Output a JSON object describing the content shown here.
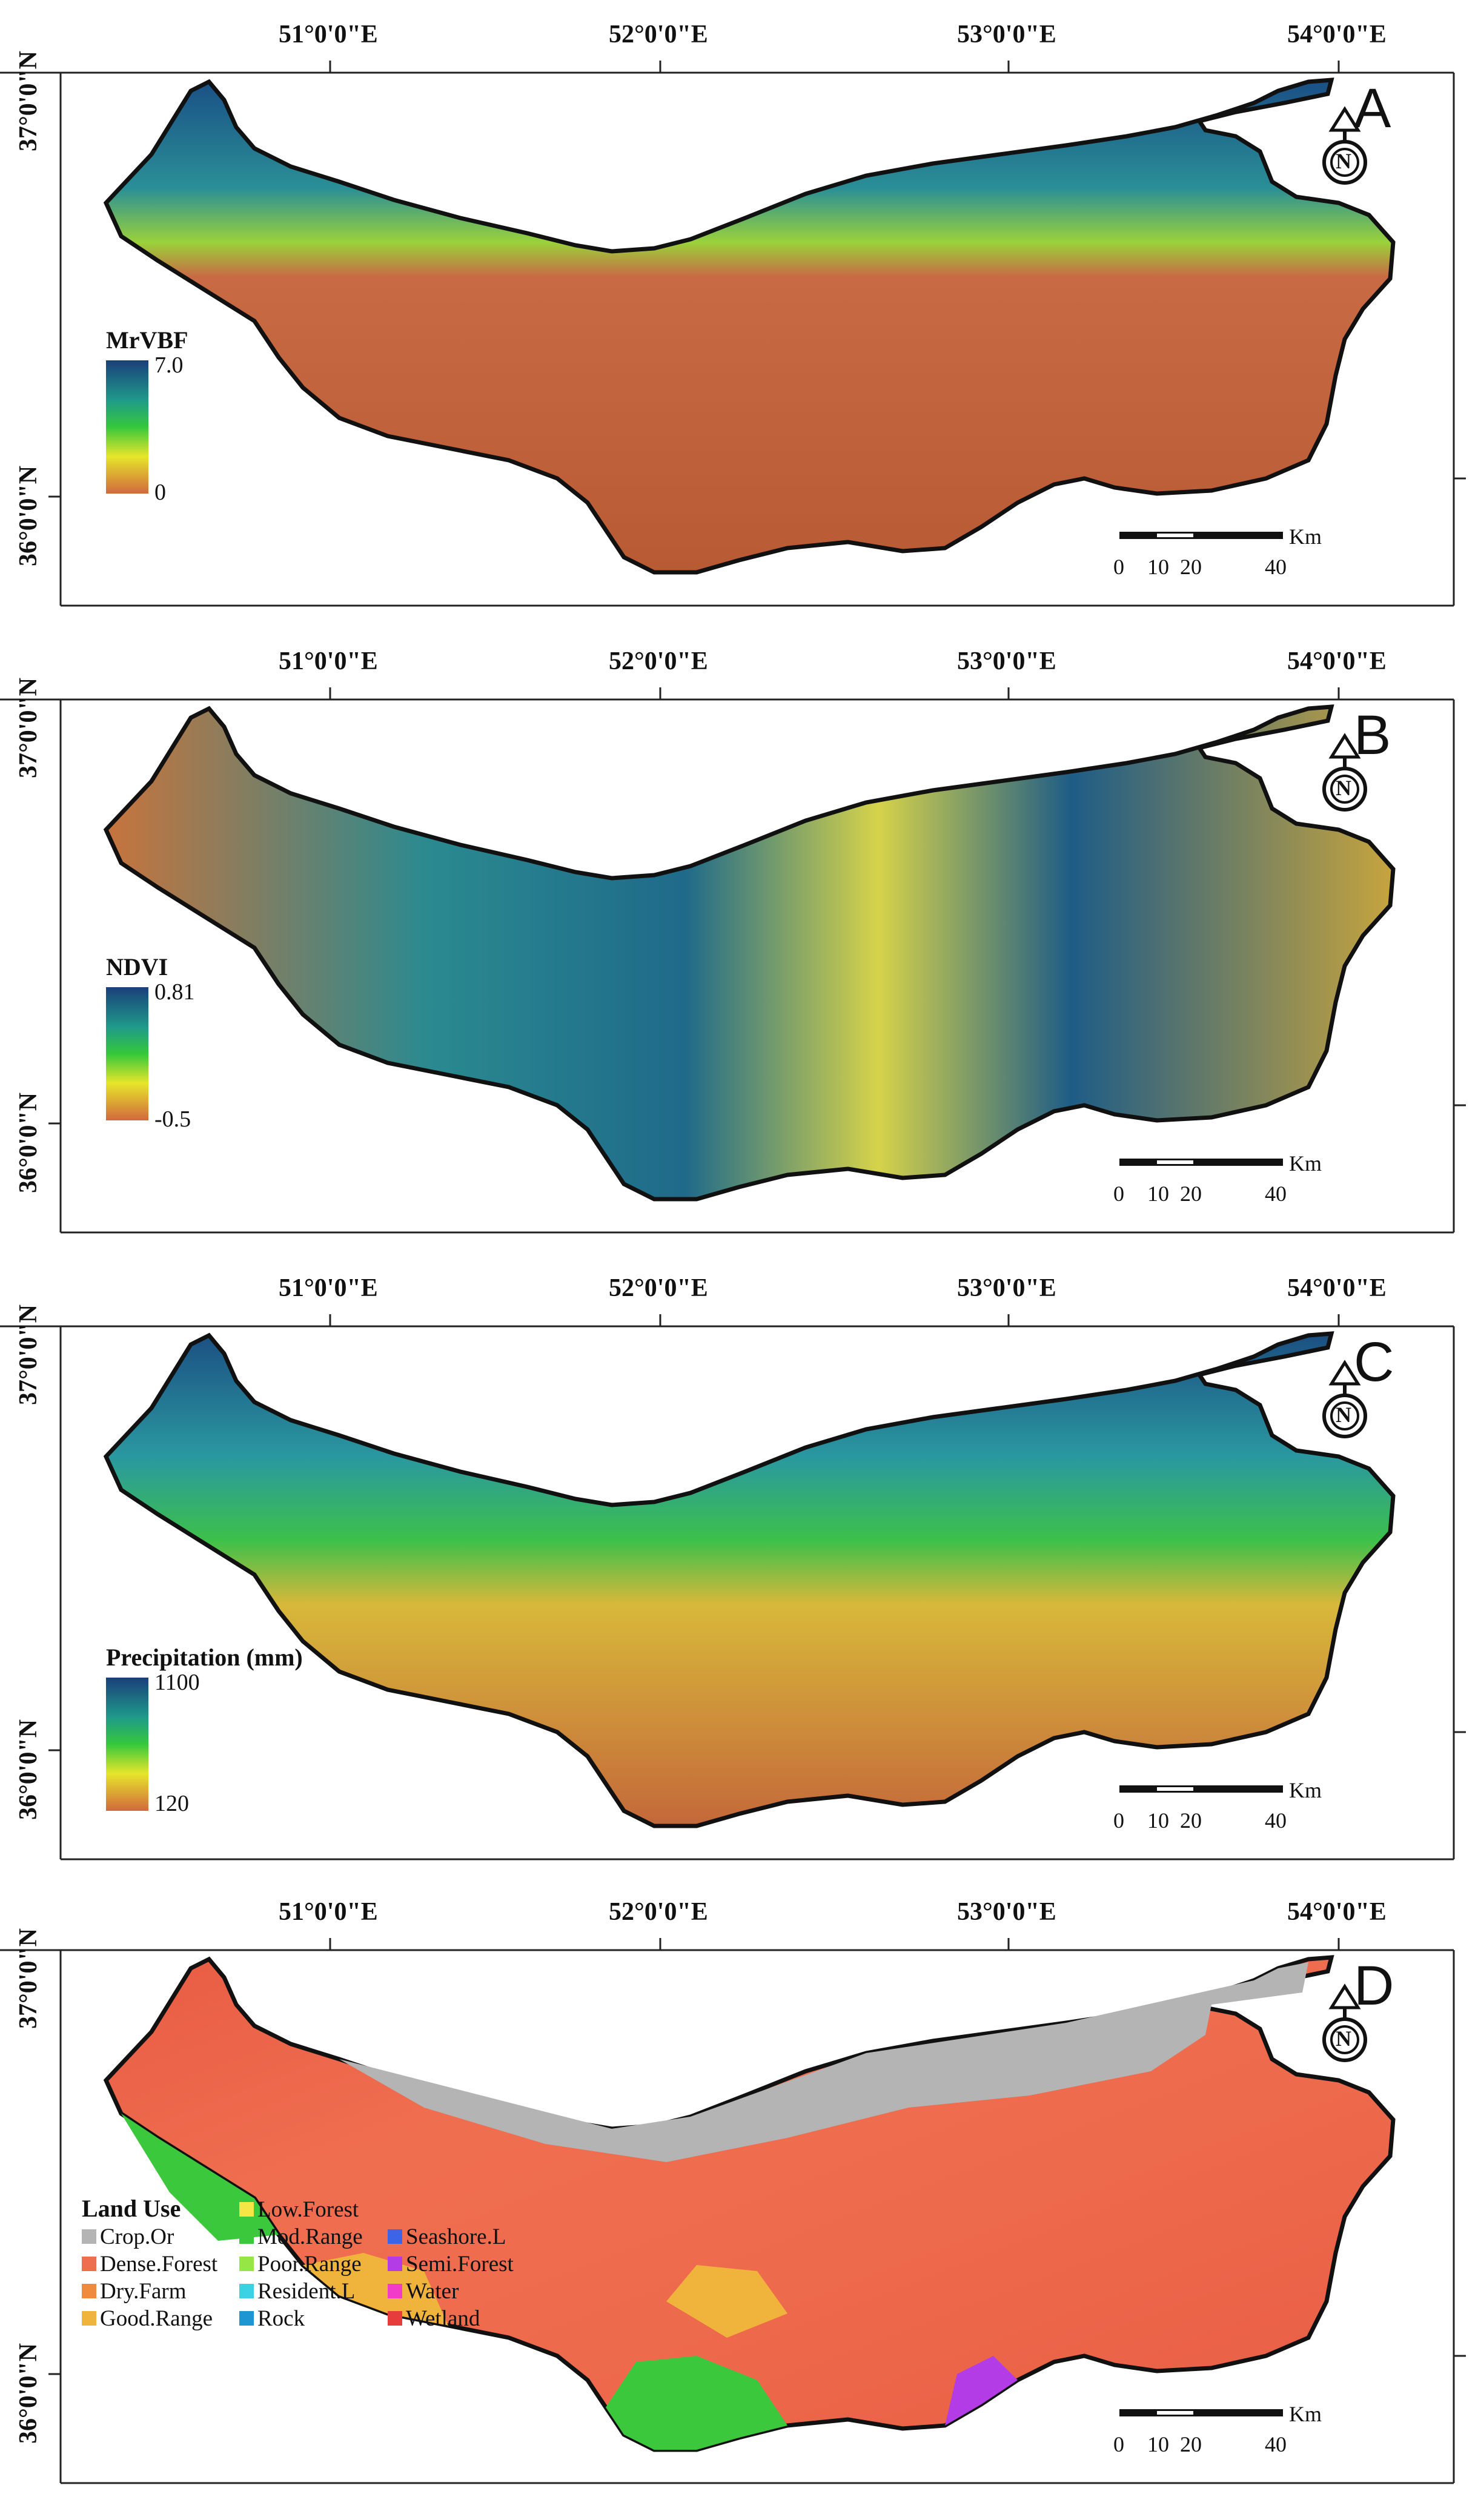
{
  "axes": {
    "lon_labels": [
      "51°0'0\"E",
      "52°0'0\"E",
      "53°0'0\"E",
      "54°0'0\"E"
    ],
    "lat_labels": [
      "37°0'0\"N",
      "36°0'0\"N"
    ]
  },
  "panels": [
    {
      "letter": "A",
      "legend_title": "MrVBF",
      "legend_max": "7.0",
      "legend_min": "0",
      "color_low": "#d2693c",
      "color_mid": "#e6e62a",
      "color_high": "#1a3f7a",
      "scale_unit": "Km",
      "scale_ticks": [
        "0",
        "10",
        "20",
        "40"
      ]
    },
    {
      "letter": "B",
      "legend_title": "NDVI",
      "legend_max": "0.81",
      "legend_min": "-0.5",
      "color_low": "#d2693c",
      "color_mid": "#e6e62a",
      "color_high": "#1a3f7a",
      "scale_unit": "Km",
      "scale_ticks": [
        "0",
        "10",
        "20",
        "40"
      ]
    },
    {
      "letter": "C",
      "legend_title": "Precipitation (mm)",
      "legend_max": "1100",
      "legend_min": "120",
      "color_low": "#d2693c",
      "color_mid": "#e6e62a",
      "color_high": "#1a3f7a",
      "scale_unit": "Km",
      "scale_ticks": [
        "0",
        "10",
        "20",
        "40"
      ]
    },
    {
      "letter": "D",
      "legend_title": "Land Use",
      "scale_unit": "Km",
      "scale_ticks": [
        "0",
        "10",
        "20",
        "40"
      ],
      "land_use_classes": [
        {
          "label": "Crop.Or",
          "color": "#b4b4b4"
        },
        {
          "label": "Dense.Forest",
          "color": "#f06e50"
        },
        {
          "label": "Dry.Farm",
          "color": "#f08a3c"
        },
        {
          "label": "Good.Range",
          "color": "#f0b43c"
        },
        {
          "label": "Low.Forest",
          "color": "#f5e646"
        },
        {
          "label": "Mod.Range",
          "color": "#3cc83c"
        },
        {
          "label": "Poor.Range",
          "color": "#96e646"
        },
        {
          "label": "Resident.L",
          "color": "#3cd2e6"
        },
        {
          "label": "Rock",
          "color": "#1e96d2"
        },
        {
          "label": "Seashore.L",
          "color": "#3c64e6"
        },
        {
          "label": "Semi.Forest",
          "color": "#b43ce6"
        },
        {
          "label": "Water",
          "color": "#f03cc8"
        },
        {
          "label": "Wetland",
          "color": "#e63c3c"
        }
      ]
    }
  ],
  "north_arrow_label": "N"
}
